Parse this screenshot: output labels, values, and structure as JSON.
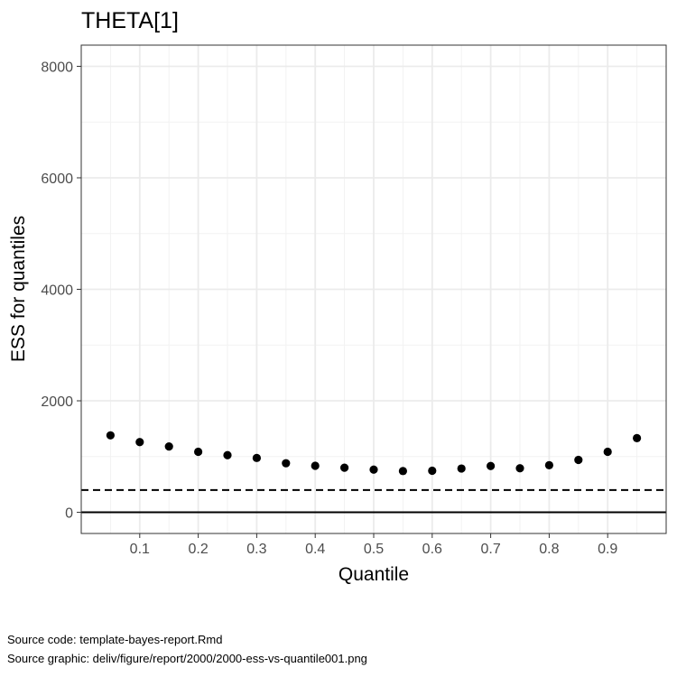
{
  "chart_data": {
    "type": "scatter",
    "title": "THETA[1]",
    "xlabel": "Quantile",
    "ylabel": "ESS for quantiles",
    "xlim": [
      0.0,
      1.0
    ],
    "ylim": [
      -380,
      8380
    ],
    "x_ticks": [
      "0.1",
      "0.2",
      "0.3",
      "0.4",
      "0.5",
      "0.6",
      "0.7",
      "0.8",
      "0.9"
    ],
    "y_ticks": [
      "0",
      "2000",
      "4000",
      "6000",
      "8000"
    ],
    "grid": true,
    "series": [
      {
        "x": [
          0.05,
          0.1,
          0.15,
          0.2,
          0.25,
          0.3,
          0.35,
          0.4,
          0.45,
          0.5,
          0.55,
          0.6,
          0.65,
          0.7,
          0.75,
          0.8,
          0.85,
          0.9,
          0.95
        ],
        "y": [
          1380,
          1260,
          1180,
          1085,
          1025,
          975,
          880,
          835,
          800,
          765,
          740,
          745,
          785,
          830,
          790,
          845,
          940,
          1085,
          1330
        ],
        "color": "#000000"
      }
    ],
    "reference_lines": [
      {
        "y": 400,
        "style": "dashed",
        "color": "#000000"
      },
      {
        "y": 0,
        "style": "solid",
        "color": "#000000"
      }
    ]
  },
  "captions": {
    "source_code": "Source code: template-bayes-report.Rmd",
    "source_graphic": "Source graphic: deliv/figure/report/2000/2000-ess-vs-quantile001.png"
  }
}
